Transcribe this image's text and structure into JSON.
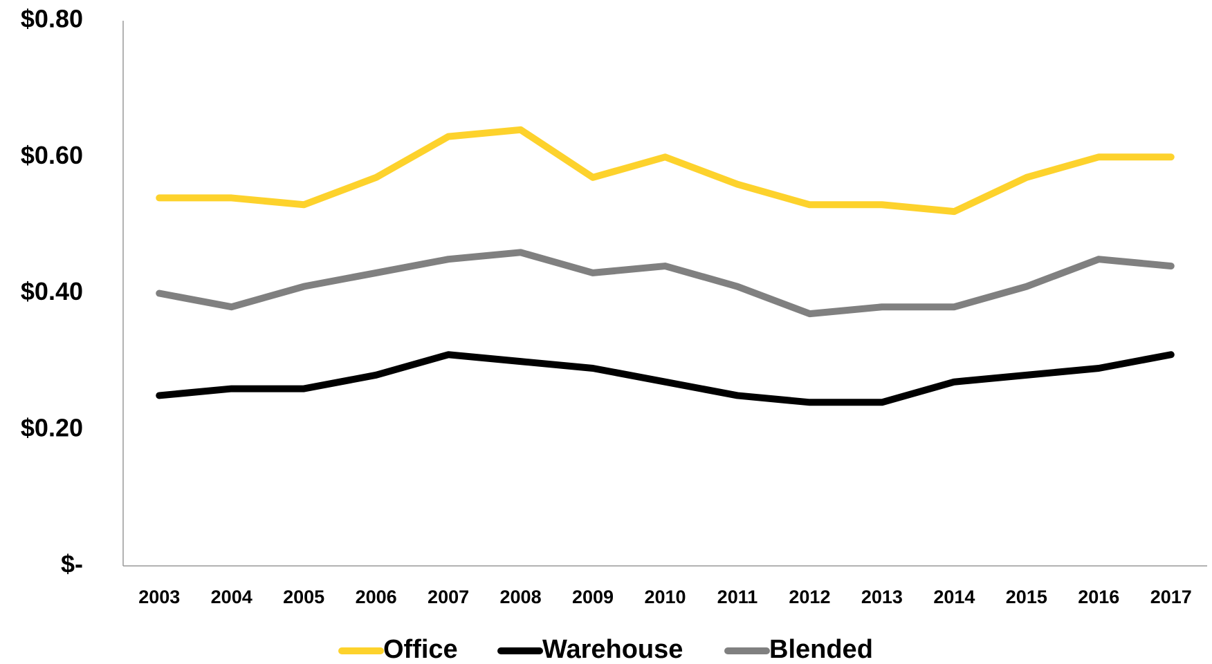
{
  "chart_data": {
    "type": "line",
    "categories": [
      "2003",
      "2004",
      "2005",
      "2006",
      "2007",
      "2008",
      "2009",
      "2010",
      "2011",
      "2012",
      "2013",
      "2014",
      "2015",
      "2016",
      "2017"
    ],
    "series": [
      {
        "name": "Office",
        "color": "#fdd22c",
        "values": [
          0.54,
          0.54,
          0.53,
          0.57,
          0.63,
          0.64,
          0.57,
          0.6,
          0.56,
          0.53,
          0.53,
          0.52,
          0.57,
          0.6,
          0.6
        ]
      },
      {
        "name": "Warehouse",
        "color": "#000000",
        "values": [
          0.25,
          0.26,
          0.26,
          0.28,
          0.31,
          0.3,
          0.29,
          0.27,
          0.25,
          0.24,
          0.24,
          0.27,
          0.28,
          0.29,
          0.31
        ]
      },
      {
        "name": "Blended",
        "color": "#808080",
        "values": [
          0.4,
          0.38,
          0.41,
          0.43,
          0.45,
          0.46,
          0.43,
          0.44,
          0.41,
          0.37,
          0.38,
          0.38,
          0.41,
          0.45,
          0.44
        ]
      }
    ],
    "ylim": [
      0,
      0.8
    ],
    "yticks": [
      {
        "value": 0,
        "label": "$-"
      },
      {
        "value": 0.2,
        "label": "$0.20"
      },
      {
        "value": 0.4,
        "label": "$0.40"
      },
      {
        "value": 0.6,
        "label": "$0.60"
      },
      {
        "value": 0.8,
        "label": "$0.80"
      }
    ],
    "legend": "bottom"
  }
}
